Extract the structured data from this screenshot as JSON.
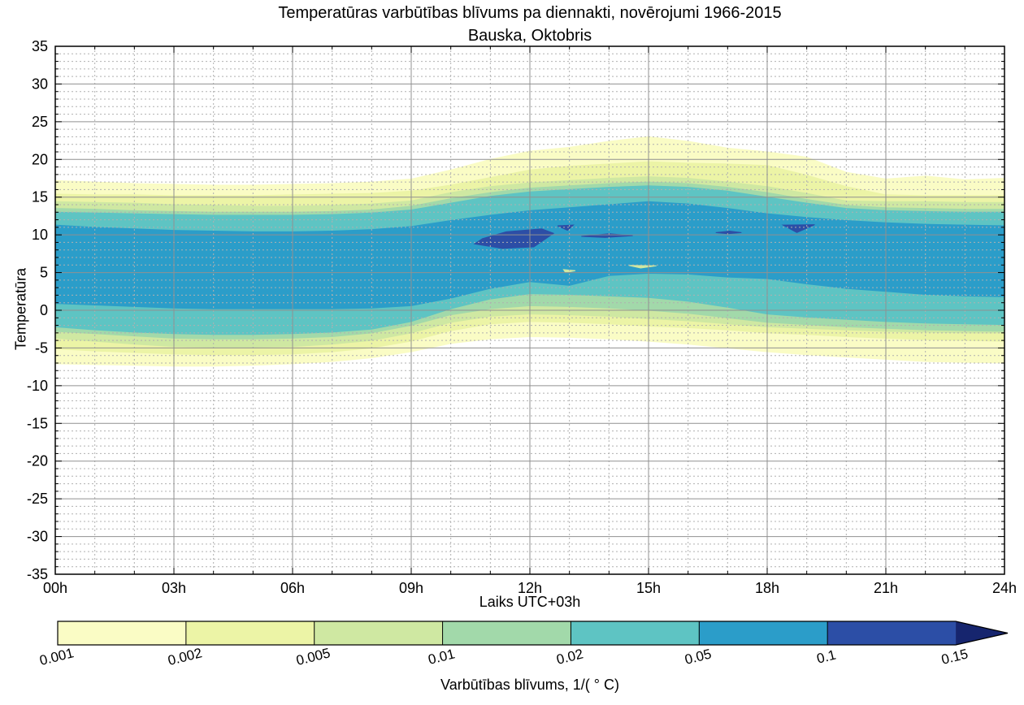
{
  "chart_data": {
    "type": "filled-contour",
    "title": "Temperatūras varbūtības blīvums pa diennakti, novērojumi 1966-2015",
    "subtitle": "Bauska, Oktobris",
    "xlabel": "Laiks UTC+03h",
    "ylabel": "Temperatūra",
    "xlim_hours": [
      0,
      24
    ],
    "ylim": [
      -35,
      35
    ],
    "x_tick_values": [
      0,
      3,
      6,
      9,
      12,
      15,
      18,
      21,
      24
    ],
    "x_tick_labels": [
      "00h",
      "03h",
      "06h",
      "09h",
      "12h",
      "15h",
      "18h",
      "21h",
      "24h"
    ],
    "y_tick_values": [
      35,
      30,
      25,
      20,
      15,
      10,
      5,
      0,
      -5,
      -10,
      -15,
      -20,
      -25,
      -30,
      -35
    ],
    "grid": {
      "major": true,
      "minor": true,
      "minor_step_x_hours": 1,
      "minor_step_y_deg": 1
    },
    "levels": [
      0.001,
      0.002,
      0.005,
      0.01,
      0.02,
      0.05,
      0.1,
      0.15
    ],
    "band_colors": [
      "#fafcc5",
      "#ecf4a6",
      "#cfe8a2",
      "#a2d9aa",
      "#5ec4c3",
      "#2b9dc9",
      "#2c4ea6"
    ],
    "x_hours": [
      0,
      1,
      2,
      3,
      4,
      5,
      6,
      7,
      8,
      9,
      10,
      11,
      12,
      13,
      14,
      15,
      16,
      17,
      18,
      19,
      20,
      21,
      22,
      23,
      24
    ],
    "bands": [
      {
        "level_from": 0.001,
        "color": "#fafcc5",
        "top": [
          17.2,
          17.0,
          16.8,
          16.7,
          16.6,
          16.6,
          16.7,
          16.8,
          17.0,
          17.4,
          18.6,
          20.0,
          21.1,
          21.6,
          22.4,
          23.0,
          22.4,
          21.5,
          21.0,
          20.3,
          18.3,
          17.4,
          17.8,
          17.3,
          17.5
        ],
        "bottom": [
          -7.1,
          -7.2,
          -7.3,
          -7.4,
          -7.4,
          -7.3,
          -7.1,
          -6.8,
          -6.3,
          -5.5,
          -4.4,
          -3.8,
          -3.5,
          -3.6,
          -3.8,
          -4.1,
          -4.5,
          -5.0,
          -5.5,
          -5.9,
          -6.2,
          -6.5,
          -6.8,
          -6.9,
          -7.0
        ]
      },
      {
        "level_from": 0.002,
        "color": "#ecf4a6",
        "top": [
          15.4,
          15.3,
          15.3,
          15.2,
          15.2,
          15.2,
          15.3,
          15.4,
          15.5,
          15.8,
          16.6,
          17.6,
          18.6,
          19.1,
          19.4,
          19.7,
          19.5,
          19.4,
          19.2,
          17.9,
          16.4,
          15.3,
          15.2,
          15.2,
          15.2
        ],
        "bottom": [
          -5.1,
          -5.4,
          -5.6,
          -5.8,
          -5.9,
          -5.9,
          -5.8,
          -5.5,
          -5.0,
          -4.1,
          -2.7,
          -1.8,
          -1.5,
          -1.6,
          -1.8,
          -2.1,
          -2.3,
          -2.6,
          -3.0,
          -3.2,
          -3.5,
          -3.7,
          -3.9,
          -4.0,
          -4.1
        ]
      },
      {
        "level_from": 0.005,
        "color": "#cfe8a2",
        "top": [
          14.4,
          14.3,
          14.2,
          14.0,
          13.9,
          13.8,
          13.8,
          13.9,
          14.1,
          14.5,
          15.6,
          16.4,
          16.9,
          17.2,
          17.5,
          17.7,
          17.5,
          17.0,
          16.4,
          15.5,
          14.5,
          14.4,
          14.4,
          14.3,
          14.3
        ],
        "bottom": [
          -3.7,
          -4.1,
          -4.5,
          -4.8,
          -4.9,
          -4.9,
          -4.8,
          -4.5,
          -4.0,
          -3.0,
          -1.6,
          -0.8,
          -0.5,
          -0.6,
          -0.8,
          -1.1,
          -1.4,
          -1.8,
          -2.2,
          -2.4,
          -2.6,
          -2.8,
          -2.9,
          -3.0,
          -3.0
        ]
      },
      {
        "level_from": 0.01,
        "color": "#a2d9aa",
        "top": [
          13.5,
          13.4,
          13.2,
          13.1,
          13.0,
          13.0,
          13.0,
          13.1,
          13.3,
          13.8,
          14.8,
          15.6,
          16.2,
          16.5,
          16.8,
          17.0,
          16.8,
          16.3,
          15.6,
          14.7,
          13.9,
          13.6,
          13.5,
          13.4,
          13.4
        ],
        "bottom": [
          -2.8,
          -3.1,
          -3.4,
          -3.7,
          -3.8,
          -3.8,
          -3.7,
          -3.5,
          -3.0,
          -2.0,
          -0.6,
          0.2,
          0.6,
          0.5,
          0.3,
          0.0,
          -0.4,
          -1.0,
          -1.6,
          -1.9,
          -2.2,
          -2.4,
          -2.6,
          -2.7,
          -2.8
        ]
      },
      {
        "level_from": 0.02,
        "color": "#5ec4c3",
        "top": [
          13.0,
          12.9,
          12.8,
          12.7,
          12.6,
          12.6,
          12.6,
          12.7,
          12.9,
          13.3,
          14.2,
          15.1,
          15.7,
          16.0,
          16.3,
          16.5,
          16.3,
          15.8,
          15.0,
          14.2,
          13.5,
          13.2,
          13.1,
          13.0,
          13.0
        ],
        "bottom": [
          -2.2,
          -2.6,
          -2.9,
          -3.1,
          -3.2,
          -3.2,
          -3.1,
          -2.9,
          -2.5,
          -1.5,
          0.2,
          1.5,
          2.2,
          2.1,
          1.9,
          1.7,
          1.2,
          0.4,
          -0.5,
          -0.9,
          -1.2,
          -1.5,
          -1.7,
          -1.8,
          -1.9
        ]
      },
      {
        "level_from": 0.05,
        "color": "#2b9dc9",
        "top": [
          11.3,
          11.0,
          10.8,
          10.6,
          10.5,
          10.4,
          10.4,
          10.5,
          10.7,
          11.1,
          11.9,
          12.6,
          13.2,
          13.6,
          14.0,
          14.4,
          14.1,
          13.5,
          12.8,
          12.3,
          11.9,
          11.6,
          11.4,
          11.3,
          11.2
        ],
        "bottom": [
          0.9,
          0.7,
          0.5,
          0.3,
          0.2,
          0.2,
          0.2,
          0.2,
          0.3,
          0.6,
          1.6,
          2.9,
          3.8,
          3.3,
          4.6,
          4.9,
          4.8,
          4.4,
          4.2,
          3.5,
          2.9,
          2.5,
          2.1,
          1.9,
          1.8
        ]
      }
    ],
    "high_density_patches": {
      "level_from": 0.1,
      "color": "#2c4ea6",
      "polygons_hour_temp": [
        [
          [
            10.6,
            8.8
          ],
          [
            11.3,
            8.2
          ],
          [
            12.1,
            8.4
          ],
          [
            12.6,
            10.2
          ],
          [
            12.3,
            10.8
          ],
          [
            11.4,
            10.4
          ],
          [
            10.8,
            9.5
          ]
        ],
        [
          [
            12.7,
            11.2
          ],
          [
            13.1,
            11.3
          ],
          [
            12.95,
            10.6
          ]
        ],
        [
          [
            13.3,
            9.8
          ],
          [
            14.0,
            10.15
          ],
          [
            14.6,
            9.9
          ],
          [
            13.9,
            9.65
          ]
        ],
        [
          [
            16.7,
            10.3
          ],
          [
            17.05,
            10.5
          ],
          [
            17.35,
            10.3
          ],
          [
            17.0,
            10.15
          ]
        ],
        [
          [
            18.4,
            11.3
          ],
          [
            19.2,
            11.35
          ],
          [
            18.75,
            10.3
          ]
        ]
      ]
    },
    "low_density_holes": {
      "color": "#cfe8a2",
      "polygons_hour_temp": [
        [
          [
            12.85,
            5.4
          ],
          [
            13.15,
            5.25
          ],
          [
            12.9,
            5.0
          ]
        ],
        [
          [
            14.5,
            5.95
          ],
          [
            15.2,
            5.9
          ],
          [
            14.8,
            5.6
          ]
        ]
      ]
    },
    "colorbar": {
      "tick_labels": [
        "0.001",
        "0.002",
        "0.005",
        "0.01",
        "0.02",
        "0.05",
        "0.1",
        "0.15"
      ],
      "segment_colors": [
        "#fafcc5",
        "#ecf4a6",
        "#cfe8a2",
        "#a2d9aa",
        "#5ec4c3",
        "#2b9dc9",
        "#2c4ea6"
      ],
      "arrow_color": "#16256e",
      "label": "Varbūtības blīvums, 1/( ° C)"
    },
    "style": {
      "grid_major_color": "#909090",
      "grid_minor_color": "#b0b0b0",
      "axis_color": "#000000",
      "background": "#ffffff"
    }
  }
}
